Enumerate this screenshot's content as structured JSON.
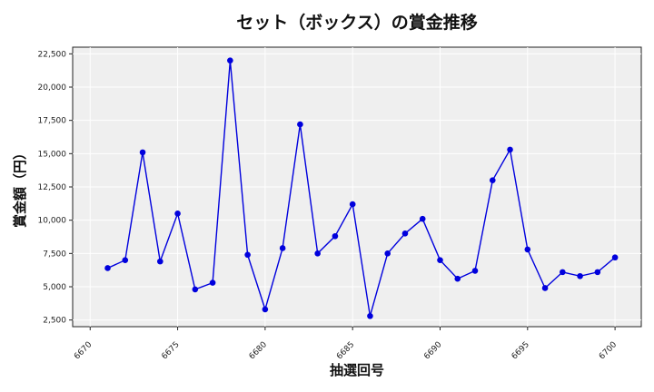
{
  "chart_data": {
    "type": "line",
    "title": "セット（ボックス）の賞金推移",
    "xlabel": "抽選回号",
    "ylabel": "賞金額（円）",
    "xlim": [
      6669,
      6701.5
    ],
    "ylim": [
      2000,
      23000
    ],
    "xticks": [
      6670,
      6675,
      6680,
      6685,
      6690,
      6695,
      6700
    ],
    "yticks": [
      2500,
      5000,
      7500,
      10000,
      12500,
      15000,
      17500,
      20000,
      22500
    ],
    "ytick_labels": [
      "2,500",
      "5,000",
      "7,500",
      "10,000",
      "12,500",
      "15,000",
      "17,500",
      "20,000",
      "22,500"
    ],
    "grid": true,
    "series": [
      {
        "color": "#0000dd",
        "x": [
          6671,
          6672,
          6673,
          6674,
          6675,
          6676,
          6677,
          6678,
          6679,
          6680,
          6681,
          6682,
          6683,
          6684,
          6685,
          6686,
          6687,
          6688,
          6689,
          6690,
          6691,
          6692,
          6693,
          6694,
          6695,
          6696,
          6697,
          6698,
          6699,
          6700
        ],
        "y": [
          6400,
          7000,
          15100,
          6900,
          10500,
          4800,
          5300,
          22000,
          7400,
          3300,
          7900,
          17200,
          7500,
          8800,
          11200,
          2800,
          7500,
          9000,
          10100,
          7000,
          5600,
          6200,
          13000,
          15300,
          7800,
          4900,
          6100,
          5800,
          6100,
          7200
        ]
      }
    ]
  }
}
